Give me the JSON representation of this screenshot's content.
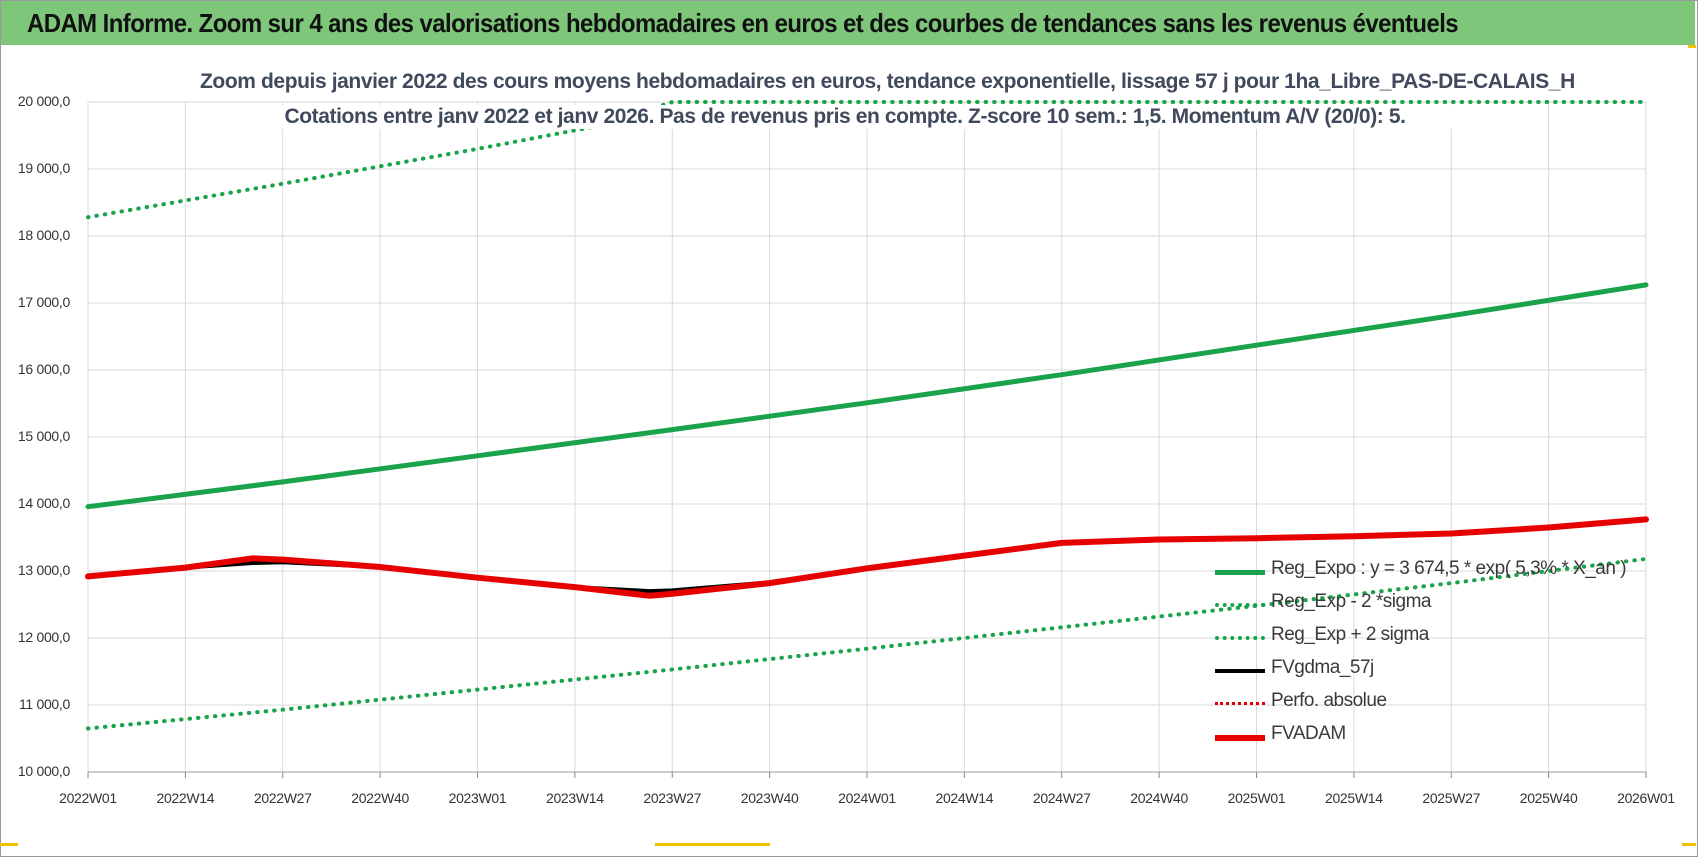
{
  "banner": {
    "title": "ADAM Informe. Zoom sur 4 ans des valorisations hebdomadaires en euros et des courbes de tendances sans les revenus éventuels"
  },
  "colors": {
    "banner": "#7dc67a",
    "reg_expo": "#1aa34a",
    "sigma": "#1aa34a",
    "fvgdma": "#000000",
    "perfo": "#e00000",
    "fvadam": "#e60000",
    "grid": "#d9d9d9"
  },
  "chart_data": {
    "type": "line",
    "title": "Zoom depuis janvier 2022 des cours moyens hebdomadaires en euros, tendance exponentielle, lissage 57 j pour 1ha_Libre_PAS-DE-CALAIS_H",
    "subtitle": "Cotations entre janv 2022 et janv 2026. Pas de revenus pris en compte. Z-score 10 sem.: 1,5. Momentum A/V (20/0): 5.",
    "xlabel": "",
    "ylabel": "",
    "ylim": [
      10000,
      20000
    ],
    "yticks": [
      "10 000,0",
      "11 000,0",
      "12 000,0",
      "13 000,0",
      "14 000,0",
      "15 000,0",
      "16 000,0",
      "17 000,0",
      "18 000,0",
      "19 000,0",
      "20 000,0"
    ],
    "ytick_values": [
      10000,
      11000,
      12000,
      13000,
      14000,
      15000,
      16000,
      17000,
      18000,
      19000,
      20000
    ],
    "xticks": [
      "2022W01",
      "2022W14",
      "2022W27",
      "2022W40",
      "2023W01",
      "2023W14",
      "2023W27",
      "2023W40",
      "2024W01",
      "2024W14",
      "2024W27",
      "2024W40",
      "2025W01",
      "2025W14",
      "2025W27",
      "2025W40",
      "2026W01"
    ],
    "xtick_weeks": [
      0,
      13,
      26,
      39,
      52,
      65,
      78,
      91,
      104,
      117,
      130,
      143,
      156,
      169,
      182,
      195,
      208
    ],
    "series": [
      {
        "name": "Reg_Expo : y = 3 674,5 * exp( 5,3% * X_an )",
        "style": "solid-thick",
        "weeks": [
          0,
          26,
          52,
          78,
          104,
          130,
          156,
          182,
          208
        ],
        "values": [
          13960,
          14330,
          14720,
          15110,
          15510,
          15930,
          16370,
          16810,
          17270
        ]
      },
      {
        "name": "Reg_Exp - 2 *sigma",
        "style": "dotted",
        "weeks": [
          0,
          26,
          52,
          78,
          104,
          130,
          156,
          182,
          208
        ],
        "values": [
          10650,
          10930,
          11230,
          11530,
          11840,
          12160,
          12480,
          12820,
          13180
        ]
      },
      {
        "name": "Reg_Exp + 2 sigma",
        "style": "dotted",
        "weeks": [
          0,
          26,
          52,
          68,
          78,
          104,
          130,
          156,
          182,
          208
        ],
        "values": [
          18280,
          18780,
          19300,
          19640,
          20000,
          20000,
          20000,
          20000,
          20000,
          20000
        ]
      },
      {
        "name": "FVgdma_57j",
        "style": "solid",
        "weeks": [
          0,
          13,
          22,
          26,
          39,
          52,
          65,
          75,
          78,
          91,
          104,
          117,
          130,
          143,
          156,
          169,
          182,
          195,
          208
        ],
        "values": [
          12920,
          13050,
          13120,
          13130,
          13060,
          12900,
          12760,
          12700,
          12710,
          12830,
          13040,
          13230,
          13420,
          13480,
          13490,
          13520,
          13560,
          13650,
          13770
        ]
      },
      {
        "name": "Perfo. absolue",
        "style": "dotted-red",
        "weeks": [],
        "values": []
      },
      {
        "name": "FVADAM",
        "style": "solid-thick-red",
        "weeks": [
          0,
          13,
          22,
          26,
          39,
          52,
          65,
          75,
          78,
          91,
          104,
          117,
          130,
          143,
          156,
          169,
          182,
          195,
          208
        ],
        "values": [
          12920,
          13050,
          13190,
          13170,
          13060,
          12900,
          12760,
          12630,
          12660,
          12820,
          13040,
          13230,
          13420,
          13470,
          13490,
          13520,
          13560,
          13650,
          13770
        ]
      }
    ],
    "legend_position": "right"
  }
}
